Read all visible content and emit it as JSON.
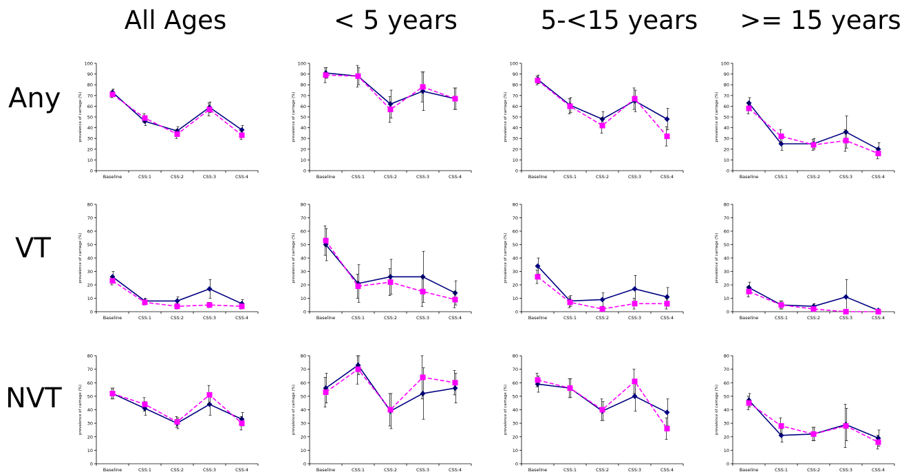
{
  "column_headers": [
    "All Ages",
    "< 5 years",
    "5-<15 years",
    ">= 15 years"
  ],
  "row_headers": [
    "Any",
    "VT",
    "NVT"
  ],
  "colors": {
    "series1": "#000080",
    "series2": "#FF00FF",
    "axis": "#000000",
    "errorbar": "#000000"
  },
  "chart_data": [
    {
      "type": "line",
      "row": "Any",
      "column": "All Ages",
      "categories": [
        "Baseline",
        "CSS:1",
        "CSS:2",
        "CSS:3",
        "CSS:4"
      ],
      "ylabel": "prevalence of carriage (%)",
      "ylim": [
        0,
        100
      ],
      "yticks": [
        0,
        10,
        20,
        30,
        40,
        50,
        60,
        70,
        80,
        90,
        100
      ],
      "series": [
        {
          "values": [
            73,
            46,
            37,
            59,
            38
          ],
          "error": [
            3,
            4,
            4,
            5,
            4
          ]
        },
        {
          "values": [
            71,
            49,
            34,
            57,
            33
          ],
          "error": [
            3,
            4,
            4,
            6,
            4
          ]
        }
      ]
    },
    {
      "type": "line",
      "row": "Any",
      "column": "< 5 years",
      "categories": [
        "Baseline",
        "CSS:1",
        "CSS:2",
        "CSS:3",
        "CSS:4"
      ],
      "ylabel": "prevalence of carriage (%)",
      "ylim": [
        0,
        100
      ],
      "yticks": [
        0,
        10,
        20,
        30,
        40,
        50,
        60,
        70,
        80,
        90,
        100
      ],
      "series": [
        {
          "values": [
            91,
            88,
            62,
            74,
            67
          ],
          "error": [
            5,
            8,
            13,
            18,
            10
          ]
        },
        {
          "values": [
            89,
            88,
            57,
            78,
            67
          ],
          "error": [
            7,
            10,
            12,
            14,
            10
          ]
        }
      ]
    },
    {
      "type": "line",
      "row": "Any",
      "column": "5-<15 years",
      "categories": [
        "Baseline",
        "CSS:1",
        "CSS:2",
        "CSS:3",
        "CSS:4"
      ],
      "ylabel": "prevalence of carriage (%)",
      "ylim": [
        0,
        100
      ],
      "yticks": [
        0,
        10,
        20,
        30,
        40,
        50,
        60,
        70,
        80,
        90,
        100
      ],
      "series": [
        {
          "values": [
            85,
            61,
            48,
            65,
            48
          ],
          "error": [
            4,
            7,
            7,
            10,
            10
          ]
        },
        {
          "values": [
            84,
            60,
            42,
            67,
            32
          ],
          "error": [
            4,
            7,
            7,
            10,
            9
          ]
        }
      ]
    },
    {
      "type": "line",
      "row": "Any",
      "column": ">= 15 years",
      "categories": [
        "Baseline",
        "CSS:1",
        "CSS:2",
        "CSS:3",
        "CSS:4"
      ],
      "ylabel": "prevalence of carriage (%)",
      "ylim": [
        0,
        100
      ],
      "yticks": [
        0,
        10,
        20,
        30,
        40,
        50,
        60,
        70,
        80,
        90,
        100
      ],
      "series": [
        {
          "values": [
            63,
            25,
            25,
            36,
            20
          ],
          "error": [
            5,
            6,
            5,
            15,
            6
          ]
        },
        {
          "values": [
            58,
            32,
            24,
            28,
            16
          ],
          "error": [
            5,
            6,
            5,
            10,
            5
          ]
        }
      ]
    },
    {
      "type": "line",
      "row": "VT",
      "column": "All Ages",
      "categories": [
        "Baseline",
        "CSS:1",
        "CSS:2",
        "CSS:3",
        "CSS:4"
      ],
      "ylabel": "prevalence of carriage (%)",
      "ylim": [
        0,
        80
      ],
      "yticks": [
        0,
        10,
        20,
        30,
        40,
        50,
        60,
        70,
        80
      ],
      "series": [
        {
          "values": [
            26,
            8,
            8,
            17,
            6
          ],
          "error": [
            4,
            2,
            3,
            7,
            3
          ]
        },
        {
          "values": [
            23,
            7,
            4,
            5,
            4
          ],
          "error": [
            3,
            2,
            2,
            2,
            2
          ]
        }
      ]
    },
    {
      "type": "line",
      "row": "VT",
      "column": "< 5 years",
      "categories": [
        "Baseline",
        "CSS:1",
        "CSS:2",
        "CSS:3",
        "CSS:4"
      ],
      "ylabel": "prevalence of carriage (%)",
      "ylim": [
        0,
        80
      ],
      "yticks": [
        0,
        10,
        20,
        30,
        40,
        50,
        60,
        70,
        80
      ],
      "series": [
        {
          "values": [
            50,
            21,
            26,
            26,
            14
          ],
          "error": [
            12,
            14,
            13,
            19,
            9
          ]
        },
        {
          "values": [
            53,
            19,
            22,
            15,
            9
          ],
          "error": [
            11,
            9,
            10,
            11,
            6
          ]
        }
      ]
    },
    {
      "type": "line",
      "row": "VT",
      "column": "5-<15 years",
      "categories": [
        "Baseline",
        "CSS:1",
        "CSS:2",
        "CSS:3",
        "CSS:4"
      ],
      "ylabel": "prevalence of carriage (%)",
      "ylim": [
        0,
        80
      ],
      "yticks": [
        0,
        10,
        20,
        30,
        40,
        50,
        60,
        70,
        80
      ],
      "series": [
        {
          "values": [
            34,
            8,
            9,
            17,
            11
          ],
          "error": [
            6,
            4,
            5,
            10,
            7
          ]
        },
        {
          "values": [
            26,
            7,
            2,
            6,
            6
          ],
          "error": [
            5,
            4,
            2,
            4,
            4
          ]
        }
      ]
    },
    {
      "type": "line",
      "row": "VT",
      "column": ">= 15 years",
      "categories": [
        "Baseline",
        "CSS:1",
        "CSS:2",
        "CSS:3",
        "CSS:4"
      ],
      "ylabel": "prevalence of carriage (%)",
      "ylim": [
        0,
        80
      ],
      "yticks": [
        0,
        10,
        20,
        30,
        40,
        50,
        60,
        70,
        80
      ],
      "series": [
        {
          "values": [
            18,
            5,
            4,
            11,
            1
          ],
          "error": [
            4,
            3,
            2,
            13,
            1
          ]
        },
        {
          "values": [
            15,
            5,
            2,
            0,
            0
          ],
          "error": [
            4,
            3,
            1,
            1,
            1
          ]
        }
      ]
    },
    {
      "type": "line",
      "row": "NVT",
      "column": "All Ages",
      "categories": [
        "Baseline",
        "CSS:1",
        "CSS:2",
        "CSS:3",
        "CSS:4"
      ],
      "ylabel": "prevalence of carriage (%)",
      "ylim": [
        0,
        80
      ],
      "yticks": [
        0,
        10,
        20,
        30,
        40,
        50,
        60,
        70,
        80
      ],
      "series": [
        {
          "values": [
            52,
            41,
            30,
            44,
            33
          ],
          "error": [
            4,
            5,
            4,
            8,
            5
          ]
        },
        {
          "values": [
            52,
            44,
            31,
            51,
            30
          ],
          "error": [
            4,
            5,
            4,
            7,
            5
          ]
        }
      ]
    },
    {
      "type": "line",
      "row": "NVT",
      "column": "< 5 years",
      "categories": [
        "Baseline",
        "CSS:1",
        "CSS:2",
        "CSS:3",
        "CSS:4"
      ],
      "ylabel": "prevalence of carriage (%)",
      "ylim": [
        0,
        80
      ],
      "yticks": [
        0,
        10,
        20,
        30,
        40,
        50,
        60,
        70,
        80
      ],
      "series": [
        {
          "values": [
            56,
            73,
            39,
            52,
            56
          ],
          "error": [
            11,
            7,
            13,
            19,
            11
          ]
        },
        {
          "values": [
            53,
            70,
            40,
            64,
            60
          ],
          "error": [
            11,
            11,
            12,
            16,
            9
          ]
        }
      ]
    },
    {
      "type": "line",
      "row": "NVT",
      "column": "5-<15 years",
      "categories": [
        "Baseline",
        "CSS:1",
        "CSS:2",
        "CSS:3",
        "CSS:4"
      ],
      "ylabel": "prevalence of carriage (%)",
      "ylim": [
        0,
        80
      ],
      "yticks": [
        0,
        10,
        20,
        30,
        40,
        50,
        60,
        70,
        80
      ],
      "series": [
        {
          "values": [
            59,
            56,
            39,
            50,
            38
          ],
          "error": [
            6,
            7,
            7,
            11,
            10
          ]
        },
        {
          "values": [
            62,
            56,
            40,
            61,
            26
          ],
          "error": [
            5,
            7,
            8,
            9,
            8
          ]
        }
      ]
    },
    {
      "type": "line",
      "row": "NVT",
      "column": ">= 15 years",
      "categories": [
        "Baseline",
        "CSS:1",
        "CSS:2",
        "CSS:3",
        "CSS:4"
      ],
      "ylabel": "prevalence of carriage (%)",
      "ylim": [
        0,
        80
      ],
      "yticks": [
        0,
        10,
        20,
        30,
        40,
        50,
        60,
        70,
        80
      ],
      "series": [
        {
          "values": [
            47,
            21,
            22,
            29,
            19
          ],
          "error": [
            5,
            5,
            5,
            12,
            6
          ]
        },
        {
          "values": [
            45,
            28,
            22,
            28,
            16
          ],
          "error": [
            5,
            6,
            5,
            16,
            5
          ]
        }
      ]
    }
  ]
}
